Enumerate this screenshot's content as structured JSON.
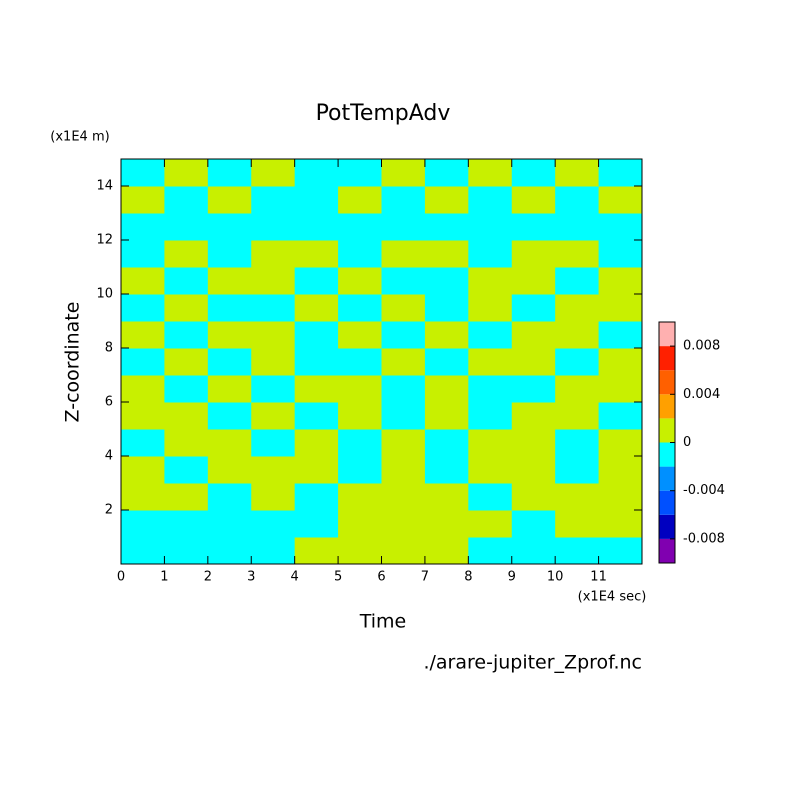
{
  "chart_data": {
    "type": "heatmap",
    "title": "PotTempAdv",
    "x_label": "Time",
    "x_unit": "(x1E4 sec)",
    "y_label": "Z-coordinate",
    "y_unit": "(x1E4 m)",
    "footer": "./arare-jupiter_Zprof.nc",
    "xlim": [
      0,
      12
    ],
    "ylim": [
      0,
      15
    ],
    "xticks": [
      0,
      1,
      2,
      3,
      4,
      5,
      6,
      7,
      8,
      9,
      10,
      11
    ],
    "yticks": [
      2,
      4,
      6,
      8,
      10,
      12,
      14
    ],
    "x": [
      0.5,
      1.5,
      2.5,
      3.5,
      4.5,
      5.5,
      6.5,
      7.5,
      8.5,
      9.5,
      10.5,
      11.5
    ],
    "y": [
      0.5,
      1.5,
      2.5,
      3.5,
      4.5,
      5.5,
      6.5,
      7.5,
      8.5,
      9.5,
      10.5,
      11.5,
      12.5,
      13.5,
      14.5
    ],
    "z": [
      [
        -0.001,
        -0.001,
        -0.001,
        -0.001,
        0.001,
        0.001,
        0.001,
        0.001,
        -0.001,
        -0.001,
        -0.001,
        -0.001
      ],
      [
        -0.001,
        -0.001,
        -0.001,
        -0.001,
        -0.001,
        0.001,
        0.001,
        0.001,
        0.001,
        -0.001,
        0.001,
        0.001
      ],
      [
        0.001,
        0.001,
        -0.001,
        0.001,
        -0.001,
        0.001,
        0.001,
        0.001,
        -0.001,
        0.001,
        0.001,
        0.001
      ],
      [
        0.001,
        -0.001,
        0.001,
        0.001,
        0.001,
        -0.001,
        0.001,
        -0.001,
        0.001,
        0.001,
        -0.001,
        0.001
      ],
      [
        -0.001,
        0.001,
        0.001,
        -0.001,
        0.001,
        -0.001,
        0.001,
        -0.001,
        0.001,
        0.001,
        -0.001,
        0.001
      ],
      [
        0.001,
        0.001,
        -0.001,
        0.001,
        -0.001,
        0.001,
        -0.001,
        0.001,
        -0.001,
        0.001,
        0.001,
        -0.001
      ],
      [
        0.001,
        -0.001,
        0.001,
        -0.001,
        0.001,
        0.001,
        -0.001,
        0.001,
        -0.001,
        -0.001,
        0.001,
        0.001
      ],
      [
        -0.001,
        0.001,
        -0.001,
        0.001,
        -0.001,
        -0.001,
        0.001,
        -0.001,
        0.001,
        0.001,
        -0.001,
        0.001
      ],
      [
        0.001,
        -0.001,
        0.001,
        0.001,
        -0.001,
        0.001,
        -0.001,
        0.001,
        -0.001,
        0.001,
        0.001,
        -0.001
      ],
      [
        -0.001,
        0.001,
        -0.001,
        -0.001,
        0.001,
        -0.001,
        0.001,
        -0.001,
        0.001,
        -0.001,
        0.001,
        0.001
      ],
      [
        0.001,
        -0.001,
        0.001,
        0.001,
        -0.001,
        0.001,
        -0.001,
        -0.001,
        0.001,
        0.001,
        -0.001,
        0.001
      ],
      [
        -0.001,
        0.001,
        -0.001,
        0.001,
        0.001,
        -0.001,
        0.001,
        0.001,
        -0.001,
        0.001,
        0.001,
        -0.001
      ],
      [
        -0.001,
        -0.001,
        -0.001,
        -0.001,
        -0.001,
        -0.001,
        -0.001,
        -0.001,
        -0.001,
        -0.001,
        -0.001,
        -0.001
      ],
      [
        0.001,
        -0.001,
        0.001,
        -0.001,
        -0.001,
        0.001,
        -0.001,
        0.001,
        -0.001,
        0.001,
        -0.001,
        0.001
      ],
      [
        -0.001,
        0.001,
        -0.001,
        0.001,
        -0.001,
        -0.001,
        0.001,
        -0.001,
        0.001,
        -0.001,
        0.001,
        -0.001
      ]
    ],
    "levels": [
      -0.01,
      -0.008,
      -0.006,
      -0.004,
      -0.002,
      0,
      0.002,
      0.004,
      0.006,
      0.008,
      0.01
    ],
    "colors": [
      "#8000b0",
      "#0000c0",
      "#0050ff",
      "#0090ff",
      "#00ffff",
      "#c8f000",
      "#ffa000",
      "#ff6000",
      "#ff2000",
      "#ffb0b0"
    ],
    "colorbar_ticks": [
      -0.008,
      -0.004,
      0,
      0.004,
      0.008
    ]
  }
}
